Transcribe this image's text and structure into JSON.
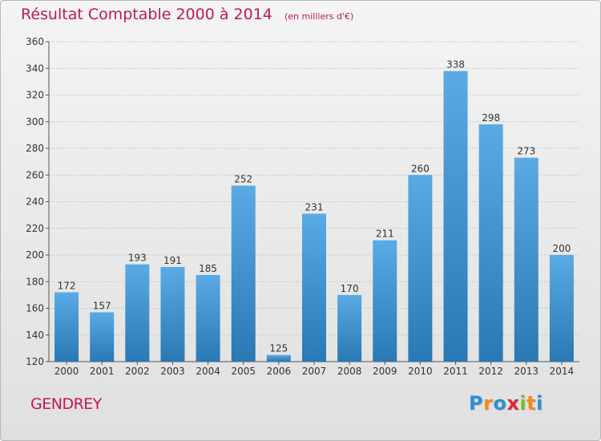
{
  "title": "Résultat Comptable 2000 à 2014",
  "unit": "(en milliers d'€)",
  "place": "GENDREY",
  "logo": {
    "text": "Proxiti",
    "letters": [
      {
        "ch": "P",
        "color": "#2d8fd8"
      },
      {
        "ch": "r",
        "color": "#f18a1c"
      },
      {
        "ch": "o",
        "color": "#2d8fd8"
      },
      {
        "ch": "x",
        "color": "#e0243a"
      },
      {
        "ch": "i",
        "color": "#7bbd2c"
      },
      {
        "ch": "t",
        "color": "#f18a1c"
      },
      {
        "ch": "i",
        "color": "#2d8fd8"
      }
    ]
  },
  "colors": {
    "accent": "#c0185a",
    "bar_top": "#5aaae6",
    "bar_bottom": "#2a78b4",
    "grid": "#b4b4b4"
  },
  "chart_data": {
    "type": "bar",
    "title": "Résultat Comptable 2000 à 2014",
    "categories": [
      "2000",
      "2001",
      "2002",
      "2003",
      "2004",
      "2005",
      "2006",
      "2007",
      "2008",
      "2009",
      "2010",
      "2011",
      "2012",
      "2013",
      "2014"
    ],
    "values": [
      172,
      157,
      193,
      191,
      185,
      252,
      125,
      231,
      170,
      211,
      260,
      338,
      298,
      273,
      200
    ],
    "ylim": [
      120,
      360
    ],
    "yticks": [
      120,
      140,
      160,
      180,
      200,
      220,
      240,
      260,
      280,
      300,
      320,
      340,
      360
    ],
    "grid": true,
    "xlabel": "",
    "ylabel": ""
  }
}
